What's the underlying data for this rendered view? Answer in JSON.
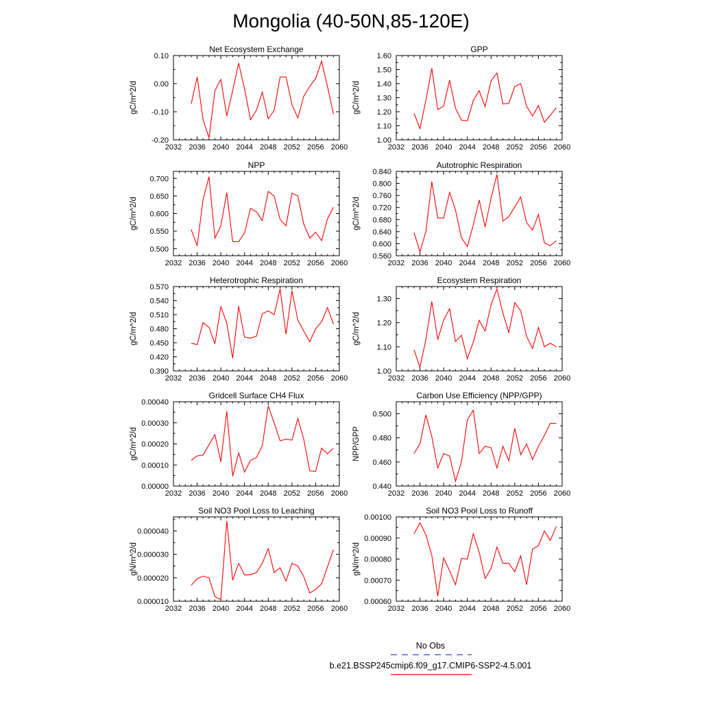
{
  "title": "Mongolia (40-50N,85-120E)",
  "legend": {
    "entries": [
      {
        "label": "No Obs",
        "color": "#3344cc",
        "style": "dashed"
      },
      {
        "label": "b.e21.BSSP245cmip6.f09_g17.CMIP6-SSP2-4.5.001",
        "color": "#ff0000",
        "style": "solid"
      }
    ]
  },
  "chart_data": [
    {
      "type": "line",
      "title": "Net Ecosystem Exchange",
      "ylabel": "gC/m^2/d",
      "xlim": [
        2032,
        2060
      ],
      "ylim": [
        -0.2,
        0.1
      ],
      "xticks": [
        "2032",
        "2036",
        "2040",
        "2044",
        "2048",
        "2052",
        "2056",
        "2060"
      ],
      "yticks": [
        "-0.20",
        "-0.10",
        "0.00",
        "0.10"
      ],
      "color": "#ff0000",
      "x": [
        2035,
        2036,
        2037,
        2038,
        2039,
        2040,
        2041,
        2042,
        2043,
        2044,
        2045,
        2046,
        2047,
        2048,
        2049,
        2050,
        2051,
        2052,
        2053,
        2054,
        2055,
        2056,
        2057,
        2058,
        2059
      ],
      "values": [
        -0.072,
        0.024,
        -0.128,
        -0.193,
        -0.025,
        0.015,
        -0.115,
        -0.025,
        0.073,
        -0.018,
        -0.128,
        -0.095,
        -0.03,
        -0.125,
        -0.095,
        0.024,
        0.024,
        -0.075,
        -0.122,
        -0.045,
        -0.01,
        0.018,
        0.08,
        -0.01,
        -0.108
      ]
    },
    {
      "type": "line",
      "title": "GPP",
      "ylabel": "gC/m^2/d",
      "xlim": [
        2032,
        2060
      ],
      "ylim": [
        1.0,
        1.6
      ],
      "xticks": [
        "2032",
        "2036",
        "2040",
        "2044",
        "2048",
        "2052",
        "2056",
        "2060"
      ],
      "yticks": [
        "1.00",
        "1.10",
        "1.20",
        "1.30",
        "1.40",
        "1.50",
        "1.60"
      ],
      "color": "#ff0000",
      "x": [
        2035,
        2036,
        2037,
        2038,
        2039,
        2040,
        2041,
        2042,
        2043,
        2044,
        2045,
        2046,
        2047,
        2048,
        2049,
        2050,
        2051,
        2052,
        2053,
        2054,
        2055,
        2056,
        2057,
        2058,
        2059
      ],
      "values": [
        1.19,
        1.08,
        1.28,
        1.51,
        1.215,
        1.24,
        1.425,
        1.225,
        1.14,
        1.135,
        1.28,
        1.35,
        1.235,
        1.42,
        1.475,
        1.255,
        1.26,
        1.38,
        1.4,
        1.24,
        1.17,
        1.245,
        1.125,
        1.175,
        1.23
      ]
    },
    {
      "type": "line",
      "title": "NPP",
      "ylabel": "gC/m^2/d",
      "xlim": [
        2032,
        2060
      ],
      "ylim": [
        0.48,
        0.72
      ],
      "xticks": [
        "2032",
        "2036",
        "2040",
        "2044",
        "2048",
        "2052",
        "2056",
        "2060"
      ],
      "yticks": [
        "0.500",
        "0.550",
        "0.600",
        "0.650",
        "0.700"
      ],
      "color": "#ff0000",
      "x": [
        2035,
        2036,
        2037,
        2038,
        2039,
        2040,
        2041,
        2042,
        2043,
        2044,
        2045,
        2046,
        2047,
        2048,
        2049,
        2050,
        2051,
        2052,
        2053,
        2054,
        2055,
        2056,
        2057,
        2058,
        2059
      ],
      "values": [
        0.555,
        0.508,
        0.64,
        0.705,
        0.53,
        0.565,
        0.66,
        0.52,
        0.52,
        0.545,
        0.615,
        0.605,
        0.58,
        0.663,
        0.65,
        0.583,
        0.565,
        0.658,
        0.65,
        0.57,
        0.53,
        0.547,
        0.523,
        0.585,
        0.618
      ]
    },
    {
      "type": "line",
      "title": "Autotrophic Respiration",
      "ylabel": "gC/m^2/d",
      "xlim": [
        2032,
        2060
      ],
      "ylim": [
        0.56,
        0.84
      ],
      "xticks": [
        "2032",
        "2036",
        "2040",
        "2044",
        "2048",
        "2052",
        "2056",
        "2060"
      ],
      "yticks": [
        "0.560",
        "0.600",
        "0.640",
        "0.680",
        "0.720",
        "0.760",
        "0.800",
        "0.840"
      ],
      "color": "#ff0000",
      "x": [
        2035,
        2036,
        2037,
        2038,
        2039,
        2040,
        2041,
        2042,
        2043,
        2044,
        2045,
        2046,
        2047,
        2048,
        2049,
        2050,
        2051,
        2052,
        2053,
        2054,
        2055,
        2056,
        2057,
        2058,
        2059
      ],
      "values": [
        0.637,
        0.573,
        0.64,
        0.806,
        0.685,
        0.685,
        0.77,
        0.712,
        0.62,
        0.59,
        0.662,
        0.745,
        0.655,
        0.752,
        0.83,
        0.675,
        0.69,
        0.722,
        0.755,
        0.67,
        0.645,
        0.697,
        0.603,
        0.593,
        0.61
      ]
    },
    {
      "type": "line",
      "title": "Heterotrophic Respiration",
      "ylabel": "gC/m^2/d",
      "xlim": [
        2032,
        2060
      ],
      "ylim": [
        0.39,
        0.57
      ],
      "xticks": [
        "2032",
        "2036",
        "2040",
        "2044",
        "2048",
        "2052",
        "2056",
        "2060"
      ],
      "yticks": [
        "0.390",
        "0.420",
        "0.450",
        "0.480",
        "0.510",
        "0.540",
        "0.570"
      ],
      "color": "#ff0000",
      "x": [
        2035,
        2036,
        2037,
        2038,
        2039,
        2040,
        2041,
        2042,
        2043,
        2044,
        2045,
        2046,
        2047,
        2048,
        2049,
        2050,
        2051,
        2052,
        2053,
        2054,
        2055,
        2056,
        2057,
        2058,
        2059
      ],
      "values": [
        0.449,
        0.446,
        0.493,
        0.483,
        0.448,
        0.527,
        0.492,
        0.417,
        0.528,
        0.462,
        0.46,
        0.464,
        0.512,
        0.518,
        0.51,
        0.565,
        0.468,
        0.561,
        0.498,
        0.475,
        0.452,
        0.48,
        0.495,
        0.525,
        0.49
      ]
    },
    {
      "type": "line",
      "title": "Ecosystem Respiration",
      "ylabel": "gC/m^2/d",
      "xlim": [
        2032,
        2060
      ],
      "ylim": [
        1.0,
        1.35
      ],
      "xticks": [
        "2032",
        "2036",
        "2040",
        "2044",
        "2048",
        "2052",
        "2056",
        "2060"
      ],
      "yticks": [
        "1.00",
        "1.10",
        "1.20",
        "1.30"
      ],
      "color": "#ff0000",
      "x": [
        2035,
        2036,
        2037,
        2038,
        2039,
        2040,
        2041,
        2042,
        2043,
        2044,
        2045,
        2046,
        2047,
        2048,
        2049,
        2050,
        2051,
        2052,
        2053,
        2054,
        2055,
        2056,
        2057,
        2058,
        2059
      ],
      "values": [
        1.088,
        1.015,
        1.13,
        1.288,
        1.13,
        1.21,
        1.258,
        1.122,
        1.148,
        1.05,
        1.12,
        1.21,
        1.165,
        1.275,
        1.34,
        1.24,
        1.158,
        1.283,
        1.25,
        1.143,
        1.093,
        1.18,
        1.1,
        1.115,
        1.1
      ]
    },
    {
      "type": "line",
      "title": "Gridcell Surface CH4 Flux",
      "ylabel": "gC/m^2/d",
      "xlim": [
        2032,
        2060
      ],
      "ylim": [
        0.0,
        0.0004
      ],
      "xticks": [
        "2032",
        "2036",
        "2040",
        "2044",
        "2048",
        "2052",
        "2056",
        "2060"
      ],
      "yticks": [
        "0.00000",
        "0.00010",
        "0.00020",
        "0.00030",
        "0.00040"
      ],
      "color": "#ff0000",
      "x": [
        2035,
        2036,
        2037,
        2038,
        2039,
        2040,
        2041,
        2042,
        2043,
        2044,
        2045,
        2046,
        2047,
        2048,
        2049,
        2050,
        2051,
        2052,
        2053,
        2054,
        2055,
        2056,
        2057,
        2058,
        2059
      ],
      "values": [
        0.000122,
        0.000143,
        0.000147,
        0.000196,
        0.000244,
        0.000115,
        0.000355,
        4.7e-05,
        0.000157,
        6.6e-05,
        0.000122,
        0.000135,
        0.000192,
        0.00038,
        0.0003,
        0.000215,
        0.000222,
        0.000218,
        0.00032,
        0.000222,
        7.2e-05,
        7e-05,
        0.00018,
        0.000153,
        0.00018
      ]
    },
    {
      "type": "line",
      "title": "Carbon Use Efficiency (NPP/GPP)",
      "ylabel": "NPP/GPP",
      "xlim": [
        2032,
        2060
      ],
      "ylim": [
        0.44,
        0.51
      ],
      "xticks": [
        "2032",
        "2036",
        "2040",
        "2044",
        "2048",
        "2052",
        "2056",
        "2060"
      ],
      "yticks": [
        "0.440",
        "0.460",
        "0.480",
        "0.500"
      ],
      "color": "#ff0000",
      "x": [
        2035,
        2036,
        2037,
        2038,
        2039,
        2040,
        2041,
        2042,
        2043,
        2044,
        2045,
        2046,
        2047,
        2048,
        2049,
        2050,
        2051,
        2052,
        2053,
        2054,
        2055,
        2056,
        2057,
        2058,
        2059
      ],
      "values": [
        0.467,
        0.475,
        0.499,
        0.481,
        0.455,
        0.467,
        0.465,
        0.444,
        0.46,
        0.495,
        0.503,
        0.467,
        0.473,
        0.472,
        0.455,
        0.473,
        0.461,
        0.488,
        0.466,
        0.475,
        0.462,
        0.473,
        0.482,
        0.492,
        0.492
      ]
    },
    {
      "type": "line",
      "title": "Soil NO3 Pool Loss to Leaching",
      "ylabel": "gN/m^2/d",
      "xlim": [
        2032,
        2060
      ],
      "ylim": [
        1e-05,
        4.6e-05
      ],
      "xticks": [
        "2032",
        "2036",
        "2040",
        "2044",
        "2048",
        "2052",
        "2056",
        "2060"
      ],
      "yticks": [
        "0.000010",
        "0.000020",
        "0.000030",
        "0.000040"
      ],
      "color": "#ff0000",
      "x": [
        2035,
        2036,
        2037,
        2038,
        2039,
        2040,
        2041,
        2042,
        2043,
        2044,
        2045,
        2046,
        2047,
        2048,
        2049,
        2050,
        2051,
        2052,
        2053,
        2054,
        2055,
        2056,
        2057,
        2058,
        2059
      ],
      "values": [
        1.68e-05,
        1.96e-05,
        2.07e-05,
        2e-05,
        1.2e-05,
        1.07e-05,
        4.43e-05,
        1.9e-05,
        2.62e-05,
        2.12e-05,
        2.13e-05,
        2.22e-05,
        2.62e-05,
        3.25e-05,
        2.22e-05,
        2.43e-05,
        1.86e-05,
        2.62e-05,
        2.5e-05,
        2.05e-05,
        1.35e-05,
        1.5e-05,
        1.75e-05,
        2.47e-05,
        3.2e-05
      ]
    },
    {
      "type": "line",
      "title": "Soil NO3 Pool Loss to Runoff",
      "ylabel": "gN/m^2/d",
      "xlim": [
        2032,
        2060
      ],
      "ylim": [
        0.0006,
        0.001
      ],
      "xticks": [
        "2032",
        "2036",
        "2040",
        "2044",
        "2048",
        "2052",
        "2056",
        "2060"
      ],
      "yticks": [
        "0.00060",
        "0.00070",
        "0.00080",
        "0.00090",
        "0.00100"
      ],
      "color": "#ff0000",
      "x": [
        2035,
        2036,
        2037,
        2038,
        2039,
        2040,
        2041,
        2042,
        2043,
        2044,
        2045,
        2046,
        2047,
        2048,
        2049,
        2050,
        2051,
        2052,
        2053,
        2054,
        2055,
        2056,
        2057,
        2058,
        2059
      ],
      "values": [
        0.00092,
        0.000972,
        0.000915,
        0.000818,
        0.000624,
        0.000805,
        0.000745,
        0.000678,
        0.000803,
        0.0008,
        0.00092,
        0.000832,
        0.000708,
        0.000755,
        0.000857,
        0.00078,
        0.00078,
        0.00074,
        0.000815,
        0.000678,
        0.000847,
        0.000863,
        0.000933,
        0.000888,
        0.000955
      ]
    }
  ]
}
